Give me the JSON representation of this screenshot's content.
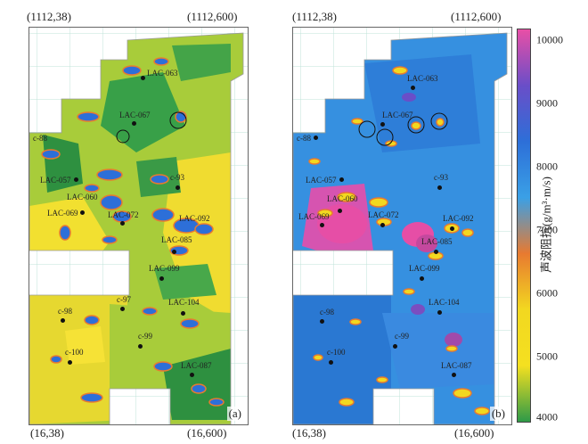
{
  "corner_labels": {
    "top_left": "(1112,38)",
    "top_right": "(1112,600)",
    "bottom_left": "(16,38)",
    "bottom_right": "(16,600)"
  },
  "panels": [
    {
      "label": "(a)",
      "wells": [
        "LAC-063",
        "LAC-067",
        "c-88",
        "LAC-057",
        "c-93",
        "LAC-060",
        "LAC-069",
        "LAC-072",
        "LAC-092",
        "LAC-085",
        "LAC-099",
        "c-97",
        "LAC-104",
        "c-98",
        "c-99",
        "c-100",
        "LAC-087"
      ]
    },
    {
      "label": "(b)",
      "wells": [
        "LAC-063",
        "LAC-067",
        "c-88",
        "LAC-057",
        "c-93",
        "LAC-060",
        "LAC-069",
        "LAC-072",
        "LAC-092",
        "LAC-085",
        "LAC-099",
        "LAC-104",
        "c-98",
        "c-99",
        "c-100",
        "LAC-087"
      ]
    }
  ],
  "colorbar": {
    "title": "声波阻抗(g/m³·m/s)",
    "ticks": [
      "10000",
      "9000",
      "8000",
      "7000",
      "6000",
      "5000",
      "4000"
    ],
    "colors": [
      "#e84fa6",
      "#6a4ec8",
      "#2d6fd8",
      "#3aa0e6",
      "#e87a30",
      "#f2d820",
      "#f4e020",
      "#2e9a48"
    ]
  }
}
